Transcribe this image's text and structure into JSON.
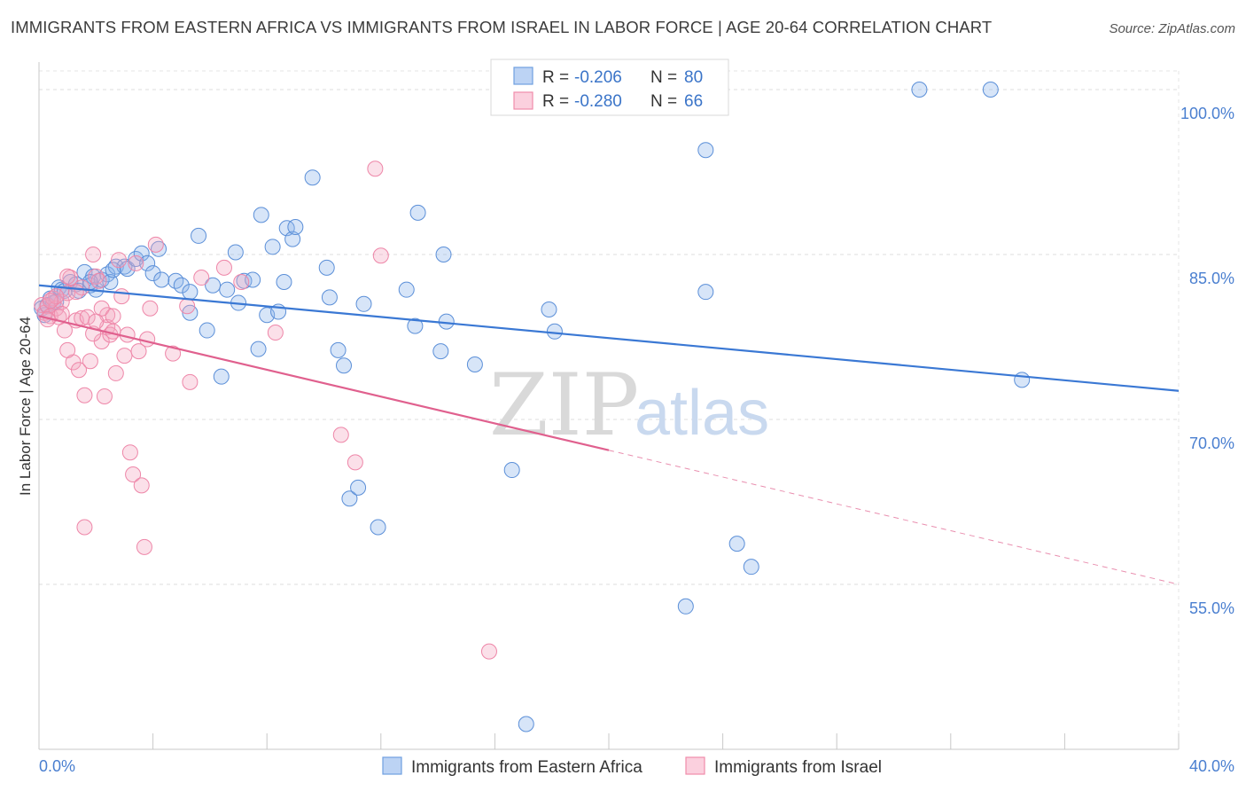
{
  "header": {
    "title": "IMMIGRANTS FROM EASTERN AFRICA VS IMMIGRANTS FROM ISRAEL IN LABOR FORCE | AGE 20-64 CORRELATION CHART",
    "source": "Source: ZipAtlas.com"
  },
  "legend": {
    "r_label": "R =",
    "n_label": "N =",
    "series": [
      {
        "r": "-0.206",
        "n": "80",
        "color": "#6f9fe0"
      },
      {
        "r": "-0.280",
        "n": "66",
        "color": "#f08cab"
      }
    ]
  },
  "watermark": {
    "zip": "ZIP",
    "atlas": "atlas"
  },
  "chart_data": {
    "type": "scatter",
    "title": "IMMIGRANTS FROM EASTERN AFRICA VS IMMIGRANTS FROM ISRAEL IN LABOR FORCE | AGE 20-64 CORRELATION CHART",
    "xlabel": "",
    "ylabel": "In Labor Force | Age 20-64",
    "xlim": [
      0,
      40
    ],
    "ylim": [
      40,
      102.5
    ],
    "x_ticks": [
      {
        "value": 0,
        "label": "0.0%"
      },
      {
        "value": 40,
        "label": "40.0%"
      }
    ],
    "y_ticks": [
      {
        "value": 100,
        "label": "100.0%"
      },
      {
        "value": 85,
        "label": "85.0%"
      },
      {
        "value": 70,
        "label": "70.0%"
      },
      {
        "value": 55,
        "label": "55.0%"
      }
    ],
    "grid": true,
    "legend_position": "top-center",
    "series": [
      {
        "name": "Immigrants from Eastern Africa",
        "color": "#6f9fe0",
        "stroke": "#5b8fd8",
        "r": -0.206,
        "n": 80,
        "trend": {
          "x0": 0,
          "y0": 82.2,
          "x1": 40,
          "y1": 72.6,
          "dashed_from": null
        },
        "points": [
          [
            0.1,
            80.1
          ],
          [
            0.2,
            79.5
          ],
          [
            0.3,
            80.4
          ],
          [
            0.4,
            81.0
          ],
          [
            0.5,
            80.6
          ],
          [
            0.7,
            82.0
          ],
          [
            0.8,
            81.8
          ],
          [
            0.9,
            81.7
          ],
          [
            1.1,
            82.5
          ],
          [
            1.3,
            82.3
          ],
          [
            1.4,
            81.7
          ],
          [
            1.6,
            83.4
          ],
          [
            1.8,
            82.2
          ],
          [
            1.9,
            83.0
          ],
          [
            2.0,
            81.8
          ],
          [
            2.2,
            82.7
          ],
          [
            2.4,
            83.2
          ],
          [
            2.5,
            82.5
          ],
          [
            2.7,
            83.9
          ],
          [
            3.0,
            83.9
          ],
          [
            3.1,
            83.7
          ],
          [
            3.4,
            84.6
          ],
          [
            3.6,
            85.1
          ],
          [
            3.8,
            84.2
          ],
          [
            4.0,
            83.3
          ],
          [
            4.2,
            85.5
          ],
          [
            4.8,
            82.6
          ],
          [
            5.0,
            82.2
          ],
          [
            5.3,
            81.6
          ],
          [
            5.3,
            79.7
          ],
          [
            5.6,
            86.7
          ],
          [
            5.9,
            78.1
          ],
          [
            6.1,
            82.2
          ],
          [
            6.4,
            73.9
          ],
          [
            6.6,
            81.8
          ],
          [
            6.9,
            85.2
          ],
          [
            7.0,
            80.6
          ],
          [
            7.2,
            82.6
          ],
          [
            7.5,
            82.7
          ],
          [
            7.7,
            76.4
          ],
          [
            7.8,
            88.6
          ],
          [
            8.0,
            79.5
          ],
          [
            8.2,
            85.7
          ],
          [
            8.4,
            79.8
          ],
          [
            8.6,
            82.5
          ],
          [
            8.7,
            87.4
          ],
          [
            8.9,
            86.4
          ],
          [
            9.0,
            87.5
          ],
          [
            9.6,
            92.0
          ],
          [
            10.1,
            83.8
          ],
          [
            10.2,
            81.1
          ],
          [
            10.5,
            76.3
          ],
          [
            10.7,
            74.9
          ],
          [
            10.9,
            62.8
          ],
          [
            11.2,
            63.8
          ],
          [
            11.4,
            80.5
          ],
          [
            11.9,
            60.2
          ],
          [
            12.9,
            81.8
          ],
          [
            13.2,
            78.5
          ],
          [
            13.3,
            88.8
          ],
          [
            14.1,
            76.2
          ],
          [
            14.2,
            85.0
          ],
          [
            14.3,
            78.9
          ],
          [
            15.3,
            75.0
          ],
          [
            16.6,
            65.4
          ],
          [
            17.1,
            42.3
          ],
          [
            17.9,
            80.0
          ],
          [
            18.1,
            78.0
          ],
          [
            22.7,
            53.0
          ],
          [
            23.4,
            94.5
          ],
          [
            23.4,
            81.6
          ],
          [
            24.5,
            58.7
          ],
          [
            25.0,
            56.6
          ],
          [
            30.9,
            100.0
          ],
          [
            33.4,
            100.0
          ],
          [
            34.5,
            73.6
          ],
          [
            1.8,
            82.5
          ],
          [
            2.6,
            83.6
          ],
          [
            4.3,
            82.7
          ],
          [
            0.6,
            80.7
          ]
        ]
      },
      {
        "name": "Immigrants from Israel",
        "color": "#f4a6c0",
        "stroke": "#ee86a8",
        "r": -0.28,
        "n": 66,
        "trend": {
          "x0": 0,
          "y0": 79.4,
          "x1": 40,
          "y1": 55.0,
          "dashed_from": 20
        },
        "points": [
          [
            0.1,
            80.4
          ],
          [
            0.2,
            79.7
          ],
          [
            0.3,
            80.3
          ],
          [
            0.4,
            79.4
          ],
          [
            0.5,
            81.0
          ],
          [
            0.6,
            80.1
          ],
          [
            0.7,
            79.3
          ],
          [
            0.8,
            80.7
          ],
          [
            0.9,
            78.1
          ],
          [
            1.0,
            81.5
          ],
          [
            1.1,
            82.9
          ],
          [
            1.2,
            75.2
          ],
          [
            1.3,
            79.0
          ],
          [
            1.4,
            74.5
          ],
          [
            1.5,
            79.2
          ],
          [
            1.6,
            72.2
          ],
          [
            1.7,
            79.3
          ],
          [
            1.8,
            75.3
          ],
          [
            1.9,
            85.0
          ],
          [
            2.0,
            83.0
          ],
          [
            2.1,
            82.6
          ],
          [
            2.2,
            77.1
          ],
          [
            2.3,
            72.1
          ],
          [
            2.4,
            78.4
          ],
          [
            2.5,
            77.7
          ],
          [
            2.6,
            78.0
          ],
          [
            2.7,
            74.2
          ],
          [
            2.8,
            84.5
          ],
          [
            2.9,
            81.2
          ],
          [
            3.0,
            75.8
          ],
          [
            3.1,
            77.7
          ],
          [
            3.2,
            67.0
          ],
          [
            3.3,
            65.0
          ],
          [
            3.4,
            84.2
          ],
          [
            3.5,
            76.2
          ],
          [
            3.6,
            64.0
          ],
          [
            3.7,
            58.4
          ],
          [
            3.8,
            77.3
          ],
          [
            3.9,
            80.1
          ],
          [
            4.1,
            85.9
          ],
          [
            4.7,
            76.0
          ],
          [
            5.2,
            80.3
          ],
          [
            5.3,
            73.4
          ],
          [
            5.7,
            82.9
          ],
          [
            6.5,
            83.8
          ],
          [
            7.1,
            82.5
          ],
          [
            8.3,
            77.9
          ],
          [
            10.6,
            68.6
          ],
          [
            11.1,
            66.1
          ],
          [
            11.8,
            92.8
          ],
          [
            12.0,
            84.9
          ],
          [
            15.8,
            48.9
          ],
          [
            1.6,
            60.2
          ],
          [
            0.8,
            79.6
          ],
          [
            2.4,
            79.5
          ],
          [
            1.0,
            83.0
          ],
          [
            1.5,
            82.0
          ],
          [
            0.3,
            79.1
          ],
          [
            0.6,
            81.2
          ],
          [
            2.2,
            80.1
          ],
          [
            1.9,
            77.8
          ],
          [
            1.0,
            76.3
          ],
          [
            0.4,
            80.8
          ],
          [
            2.6,
            79.4
          ],
          [
            1.3,
            81.6
          ],
          [
            2.0,
            78.9
          ]
        ]
      }
    ]
  }
}
